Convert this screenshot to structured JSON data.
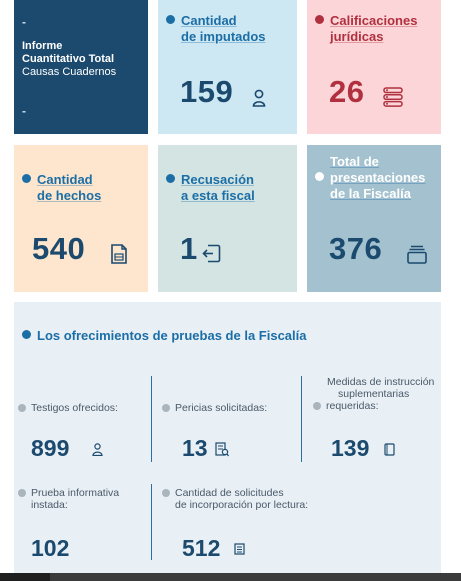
{
  "header_card": {
    "dash_top": "-",
    "title_line1": "Informe",
    "title_line2": "Cuantitativo Total",
    "subtitle": "Causas Cuadernos",
    "dash_bottom": "-"
  },
  "tiles": [
    {
      "label_line1": "Cantidad",
      "label_line2": "de imputados",
      "value": "159",
      "icon": "person-icon"
    },
    {
      "label_line1": "Calificaciones",
      "label_line2": "jurídicas",
      "value": "26",
      "icon": "list-icon"
    },
    {
      "label_line1": "Cantidad",
      "label_line2": "de hechos",
      "value": "540",
      "icon": "document-icon"
    },
    {
      "label_line1": "Recusación",
      "label_line2": "a esta fiscal",
      "value": "1",
      "icon": "exit-icon"
    },
    {
      "label_line1": "Total de",
      "label_line2": "presentaciones",
      "label_line3": "de la Fiscalía",
      "value": "376",
      "icon": "stack-icon"
    }
  ],
  "evidence": {
    "title": "Los ofrecimientos de pruebas de la Fiscalía",
    "items": [
      {
        "label": "Testigos ofrecidos:",
        "value": "899",
        "icon": "person-icon"
      },
      {
        "label": "Pericias solicitadas:",
        "value": "13",
        "icon": "expertise-icon"
      },
      {
        "label_line1": "Medidas de instrucción",
        "label_line2": "suplementarias",
        "label_line3": "requeridas:",
        "value": "139",
        "icon": "note-icon"
      },
      {
        "label_line1": "Prueba informativa",
        "label_line2": "instada:",
        "value": "102"
      },
      {
        "label_line1": "Cantidad de solicitudes",
        "label_line2": "de incorporación por lectura:",
        "value": "512",
        "icon": "book-icon"
      }
    ]
  },
  "colors": {
    "navy": "#1b4a6e",
    "accent_blue": "#1b6ea6",
    "accent_red": "#b0303f",
    "tile_blue": "#cde7f3",
    "tile_pink": "#fbd5d7",
    "tile_peach": "#fde6cd",
    "tile_sage": "#d3e4e2",
    "tile_slate": "#a3c1cf",
    "panel": "#e8eff5"
  }
}
